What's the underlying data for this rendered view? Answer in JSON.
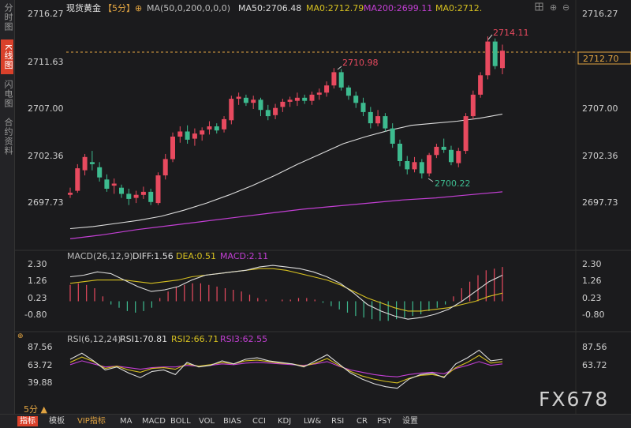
{
  "sidebar": [
    {
      "label": "分时图",
      "active": false
    },
    {
      "label": "K线图",
      "active": true
    },
    {
      "label": "闪电图",
      "active": false
    },
    {
      "label": "合约资料",
      "active": false
    }
  ],
  "main": {
    "symbol": "现货黄金",
    "timeframe": "【5分】",
    "ma_params": "MA(50,0,200,0,0,0)",
    "ma50": "MA50:2706.48",
    "ma0": "MA0:2712.79",
    "ma200": "MA200:2699.11",
    "ma0b": "MA0:2712.",
    "y_ticks": [
      "2716.27",
      "2711.63",
      "2707.00",
      "2702.36",
      "2697.73"
    ],
    "price_tag": "2712.70",
    "annotations": {
      "high1": "2710.98",
      "high2": "2714.11",
      "low1": "2700.22"
    }
  },
  "macd": {
    "header": "MACD(26,12,9)",
    "diff": "DIFF:1.56",
    "dea": "DEA:0.51",
    "macd": "MACD:2.11",
    "y_ticks": [
      "2.30",
      "1.26",
      "0.23",
      "-0.80"
    ]
  },
  "rsi": {
    "header": "RSI(6,12,24)",
    "rsi1": "RSI1:70.81",
    "rsi2": "RSI2:66.71",
    "rsi3": "RSI3:62.55",
    "y_ticks": [
      "87.56",
      "63.72",
      "39.88"
    ]
  },
  "bottom": {
    "timeframe_label": "5分 ▲",
    "tabs": [
      "指标",
      "模板",
      "VIP指标",
      "MA",
      "MACD",
      "BOLL",
      "VOL",
      "BIAS",
      "CCI",
      "KDJ",
      "LW&",
      "RSI",
      "CR",
      "PSY",
      "设置"
    ]
  },
  "watermark": "FX678",
  "colors": {
    "up": "#e84a5f",
    "down": "#3dbb8f",
    "ma50": "#dddddd",
    "ma200": "#c23fd3",
    "dea": "#d6c020",
    "rsi2": "#d6c020",
    "rsi3": "#c23fd3",
    "accent": "#d9412b"
  },
  "chart_data": {
    "type": "candlestick",
    "y_range": [
      2696.5,
      2717.0
    ],
    "candles": [
      {
        "o": 2698.6,
        "h": 2699.3,
        "l": 2698.3,
        "c": 2698.8
      },
      {
        "o": 2699.0,
        "h": 2701.6,
        "l": 2698.8,
        "c": 2701.2
      },
      {
        "o": 2701.0,
        "h": 2702.6,
        "l": 2700.5,
        "c": 2702.3
      },
      {
        "o": 2701.8,
        "h": 2702.9,
        "l": 2701.0,
        "c": 2701.6
      },
      {
        "o": 2701.3,
        "h": 2701.8,
        "l": 2699.9,
        "c": 2700.3
      },
      {
        "o": 2700.1,
        "h": 2700.6,
        "l": 2698.9,
        "c": 2699.2
      },
      {
        "o": 2699.5,
        "h": 2700.2,
        "l": 2698.7,
        "c": 2699.7
      },
      {
        "o": 2699.3,
        "h": 2699.6,
        "l": 2698.3,
        "c": 2698.7
      },
      {
        "o": 2698.7,
        "h": 2699.2,
        "l": 2697.6,
        "c": 2698.2
      },
      {
        "o": 2698.3,
        "h": 2699.0,
        "l": 2697.8,
        "c": 2698.6
      },
      {
        "o": 2698.6,
        "h": 2699.4,
        "l": 2698.2,
        "c": 2698.9
      },
      {
        "o": 2698.9,
        "h": 2699.2,
        "l": 2697.6,
        "c": 2697.9
      },
      {
        "o": 2697.8,
        "h": 2700.8,
        "l": 2697.6,
        "c": 2700.5
      },
      {
        "o": 2700.5,
        "h": 2702.6,
        "l": 2700.1,
        "c": 2702.1
      },
      {
        "o": 2702.1,
        "h": 2704.7,
        "l": 2701.8,
        "c": 2704.3
      },
      {
        "o": 2704.3,
        "h": 2705.3,
        "l": 2703.7,
        "c": 2704.8
      },
      {
        "o": 2704.8,
        "h": 2705.4,
        "l": 2703.6,
        "c": 2704.0
      },
      {
        "o": 2704.1,
        "h": 2705.1,
        "l": 2703.4,
        "c": 2704.6
      },
      {
        "o": 2704.5,
        "h": 2705.2,
        "l": 2703.9,
        "c": 2704.9
      },
      {
        "o": 2705.0,
        "h": 2705.8,
        "l": 2704.5,
        "c": 2705.3
      },
      {
        "o": 2705.3,
        "h": 2705.6,
        "l": 2704.6,
        "c": 2704.9
      },
      {
        "o": 2705.0,
        "h": 2706.3,
        "l": 2704.7,
        "c": 2706.0
      },
      {
        "o": 2705.9,
        "h": 2708.3,
        "l": 2705.5,
        "c": 2708.0
      },
      {
        "o": 2708.0,
        "h": 2708.6,
        "l": 2707.4,
        "c": 2708.2
      },
      {
        "o": 2708.1,
        "h": 2708.4,
        "l": 2707.3,
        "c": 2707.6
      },
      {
        "o": 2707.6,
        "h": 2708.3,
        "l": 2707.0,
        "c": 2707.9
      },
      {
        "o": 2707.9,
        "h": 2708.1,
        "l": 2706.3,
        "c": 2706.9
      },
      {
        "o": 2706.9,
        "h": 2707.4,
        "l": 2705.9,
        "c": 2706.3
      },
      {
        "o": 2706.4,
        "h": 2707.5,
        "l": 2706.0,
        "c": 2707.1
      },
      {
        "o": 2707.2,
        "h": 2708.0,
        "l": 2706.7,
        "c": 2707.7
      },
      {
        "o": 2707.7,
        "h": 2708.2,
        "l": 2707.2,
        "c": 2707.9
      },
      {
        "o": 2707.8,
        "h": 2708.6,
        "l": 2707.3,
        "c": 2708.1
      },
      {
        "o": 2708.1,
        "h": 2708.4,
        "l": 2707.5,
        "c": 2707.8
      },
      {
        "o": 2707.8,
        "h": 2708.7,
        "l": 2707.4,
        "c": 2708.4
      },
      {
        "o": 2708.4,
        "h": 2709.0,
        "l": 2707.9,
        "c": 2708.6
      },
      {
        "o": 2708.6,
        "h": 2709.7,
        "l": 2708.2,
        "c": 2709.3
      },
      {
        "o": 2709.3,
        "h": 2711.0,
        "l": 2709.0,
        "c": 2710.6
      },
      {
        "o": 2710.6,
        "h": 2710.9,
        "l": 2708.8,
        "c": 2709.1
      },
      {
        "o": 2709.1,
        "h": 2709.3,
        "l": 2707.9,
        "c": 2708.3
      },
      {
        "o": 2708.3,
        "h": 2708.7,
        "l": 2707.1,
        "c": 2707.6
      },
      {
        "o": 2707.6,
        "h": 2708.1,
        "l": 2706.3,
        "c": 2706.7
      },
      {
        "o": 2706.7,
        "h": 2707.2,
        "l": 2705.1,
        "c": 2705.6
      },
      {
        "o": 2705.6,
        "h": 2706.9,
        "l": 2705.3,
        "c": 2706.3
      },
      {
        "o": 2706.3,
        "h": 2706.6,
        "l": 2704.8,
        "c": 2705.1
      },
      {
        "o": 2705.1,
        "h": 2705.6,
        "l": 2703.2,
        "c": 2703.6
      },
      {
        "o": 2703.6,
        "h": 2704.0,
        "l": 2701.4,
        "c": 2701.9
      },
      {
        "o": 2701.9,
        "h": 2702.4,
        "l": 2700.6,
        "c": 2701.1
      },
      {
        "o": 2701.1,
        "h": 2702.3,
        "l": 2700.8,
        "c": 2701.8
      },
      {
        "o": 2701.8,
        "h": 2702.1,
        "l": 2700.2,
        "c": 2700.7
      },
      {
        "o": 2700.7,
        "h": 2702.7,
        "l": 2700.4,
        "c": 2702.5
      },
      {
        "o": 2702.5,
        "h": 2703.6,
        "l": 2702.2,
        "c": 2703.3
      },
      {
        "o": 2703.3,
        "h": 2704.1,
        "l": 2702.7,
        "c": 2703.0
      },
      {
        "o": 2703.0,
        "h": 2703.4,
        "l": 2701.5,
        "c": 2701.8
      },
      {
        "o": 2701.7,
        "h": 2703.2,
        "l": 2701.3,
        "c": 2702.9
      },
      {
        "o": 2702.9,
        "h": 2706.6,
        "l": 2702.6,
        "c": 2706.3
      },
      {
        "o": 2706.3,
        "h": 2708.8,
        "l": 2706.0,
        "c": 2708.4
      },
      {
        "o": 2708.4,
        "h": 2710.6,
        "l": 2708.1,
        "c": 2710.3
      },
      {
        "o": 2710.3,
        "h": 2714.1,
        "l": 2709.9,
        "c": 2713.6
      },
      {
        "o": 2713.6,
        "h": 2713.9,
        "l": 2710.9,
        "c": 2711.2
      },
      {
        "o": 2711.0,
        "h": 2713.3,
        "l": 2710.4,
        "c": 2712.7
      }
    ],
    "ma50": [
      2695.3,
      2695.5,
      2695.8,
      2696.1,
      2696.5,
      2697.1,
      2697.8,
      2698.6,
      2699.5,
      2700.5,
      2701.6,
      2702.6,
      2703.6,
      2704.3,
      2704.9,
      2705.4,
      2705.6,
      2705.8,
      2706.1,
      2706.5
    ],
    "ma200": [
      2694.3,
      2694.7,
      2695.2,
      2695.6,
      2696.0,
      2696.4,
      2696.8,
      2697.2,
      2697.5,
      2697.8,
      2698.1,
      2698.3,
      2698.6,
      2698.9
    ],
    "macd_hist": [
      1.0,
      1.1,
      1.0,
      0.8,
      0.3,
      -0.2,
      -0.4,
      -0.6,
      -0.7,
      -0.6,
      -0.4,
      0.2,
      0.6,
      0.9,
      1.0,
      1.1,
      1.1,
      1.0,
      0.9,
      0.8,
      0.7,
      0.6,
      0.4,
      0.2,
      0.1,
      0.0,
      0.1,
      0.1,
      0.2,
      0.2,
      0.1,
      -0.1,
      -0.3,
      -0.5,
      -0.7,
      -0.9,
      -1.0,
      -1.1,
      -1.2,
      -1.2,
      -1.1,
      -1.0,
      -0.9,
      -0.8,
      -0.6,
      -0.4,
      -0.2,
      0.3,
      0.8,
      1.2,
      1.6,
      1.9,
      2.0,
      2.1
    ],
    "diff": [
      1.5,
      1.6,
      1.8,
      1.7,
      1.3,
      0.9,
      0.6,
      0.7,
      0.9,
      1.3,
      1.6,
      1.7,
      1.8,
      1.9,
      2.1,
      2.2,
      2.1,
      2.0,
      1.8,
      1.5,
      1.1,
      0.5,
      -0.2,
      -0.6,
      -0.9,
      -1.1,
      -1.0,
      -0.8,
      -0.5,
      0.0,
      0.6,
      1.2,
      1.6
    ],
    "dea": [
      1.1,
      1.2,
      1.3,
      1.3,
      1.3,
      1.2,
      1.1,
      1.2,
      1.3,
      1.5,
      1.6,
      1.7,
      1.8,
      1.9,
      2.0,
      2.0,
      1.9,
      1.7,
      1.5,
      1.3,
      1.0,
      0.6,
      0.2,
      -0.1,
      -0.4,
      -0.6,
      -0.6,
      -0.5,
      -0.4,
      -0.2,
      0.0,
      0.3,
      0.5
    ],
    "rsi1": [
      72,
      80,
      70,
      58,
      62,
      54,
      48,
      56,
      58,
      52,
      68,
      62,
      64,
      70,
      66,
      72,
      74,
      70,
      68,
      66,
      62,
      70,
      78,
      66,
      54,
      46,
      40,
      36,
      34,
      46,
      52,
      54,
      48,
      66,
      74,
      84,
      70,
      72
    ],
    "rsi2": [
      68,
      75,
      69,
      60,
      63,
      58,
      55,
      60,
      61,
      59,
      66,
      63,
      65,
      68,
      66,
      70,
      71,
      69,
      67,
      66,
      63,
      67,
      73,
      64,
      56,
      50,
      46,
      43,
      41,
      47,
      51,
      52,
      49,
      61,
      68,
      77,
      67,
      69
    ],
    "rsi3": [
      65,
      70,
      66,
      62,
      63,
      61,
      59,
      61,
      62,
      62,
      64,
      63,
      64,
      66,
      65,
      67,
      68,
      67,
      66,
      65,
      64,
      66,
      69,
      63,
      58,
      55,
      52,
      50,
      49,
      52,
      54,
      55,
      53,
      60,
      64,
      69,
      64,
      66
    ]
  }
}
